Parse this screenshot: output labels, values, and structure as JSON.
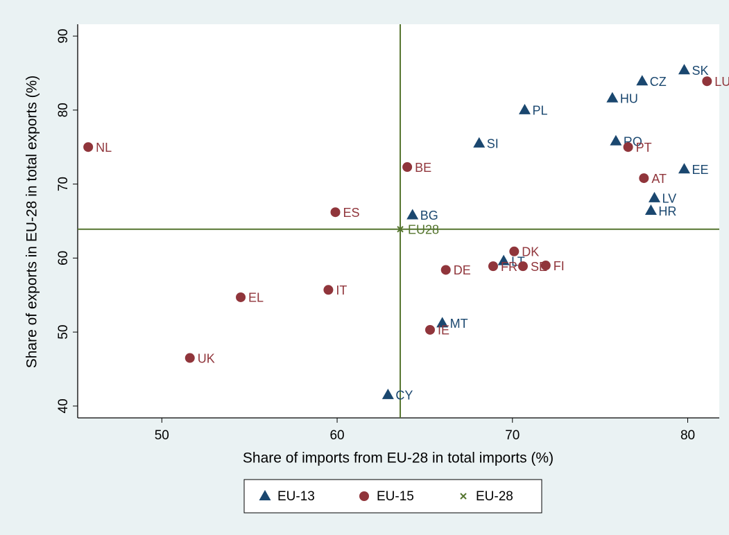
{
  "chart_data": {
    "type": "scatter",
    "x_label": "Share of imports from EU-28 in total imports (%)",
    "y_label": "Share of exports in EU-28 in total exports (%)",
    "xlim": [
      45.2,
      81.8
    ],
    "ylim": [
      38.4,
      91.6
    ],
    "xticks": [
      50,
      60,
      70,
      80
    ],
    "yticks": [
      40,
      50,
      60,
      70,
      80,
      90
    ],
    "grid": false,
    "reference_lines": true,
    "legend": "bottom",
    "series": [
      {
        "name": "EU-13",
        "color": "#1a476f",
        "marker": "triangle",
        "labels": [
          "SK",
          "CZ",
          "HU",
          "PL",
          "RO",
          "SI",
          "EE",
          "LV",
          "HR",
          "BG",
          "LT",
          "MT",
          "CY"
        ],
        "x": [
          79.8,
          77.4,
          75.7,
          70.7,
          75.9,
          68.1,
          79.8,
          78.1,
          77.9,
          64.3,
          69.5,
          66.0,
          62.9
        ],
        "values": [
          85.4,
          83.9,
          81.6,
          80.0,
          75.8,
          75.5,
          72.0,
          68.1,
          66.4,
          65.8,
          59.6,
          51.2,
          41.5
        ]
      },
      {
        "name": "EU-15",
        "color": "#90353b",
        "marker": "circle",
        "labels": [
          "LU",
          "PT",
          "AT",
          "NL",
          "BE",
          "ES",
          "DK",
          "FR",
          "SE",
          "FI",
          "DE",
          "IT",
          "EL",
          "IE",
          "UK"
        ],
        "x": [
          81.1,
          76.6,
          77.5,
          45.8,
          64.0,
          59.9,
          70.1,
          68.9,
          70.6,
          71.9,
          66.2,
          59.5,
          54.5,
          65.3,
          51.6
        ],
        "values": [
          83.9,
          75.0,
          70.8,
          75.0,
          72.3,
          66.2,
          60.9,
          58.9,
          58.9,
          59.0,
          58.4,
          55.7,
          54.7,
          50.3,
          46.5
        ]
      },
      {
        "name": "EU-28",
        "color": "#55752f",
        "marker": "x",
        "labels": [
          "EU28"
        ],
        "x": [
          63.6
        ],
        "values": [
          63.9
        ]
      }
    ]
  }
}
